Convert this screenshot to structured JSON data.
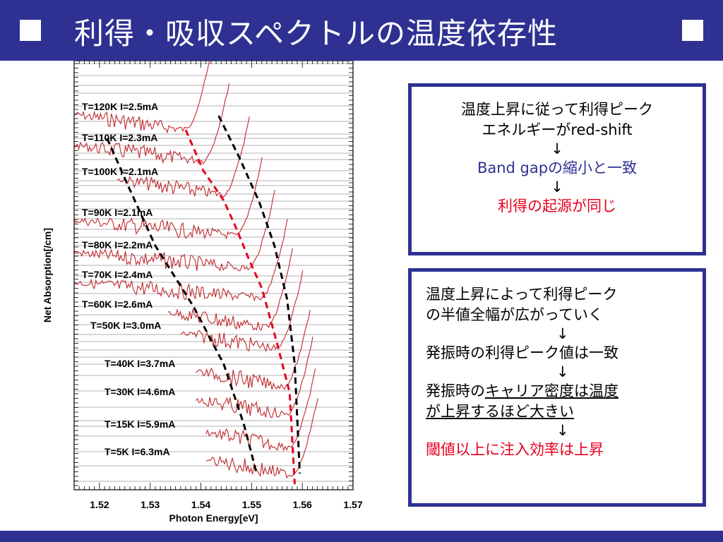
{
  "title": {
    "text": "利得・吸収スペクトルの温度依存性",
    "accent_color": "#2e3192"
  },
  "box1": {
    "line1": "温度上昇に従って利得ピーク",
    "line2": "エネルギーがred-shift",
    "arrow1": "↓",
    "line3": "Band gapの縮小と一致",
    "arrow2": "↓",
    "line4": "利得の起源が同じ"
  },
  "box2": {
    "line1": "温度上昇によって利得ピーク",
    "line2": "の半値全幅が広がっていく",
    "arrow1": "↓",
    "line3": "発振時の利得ピーク値は一致",
    "arrow2": "↓",
    "line4a": "発振時の",
    "line4b": "キャリア密度は温度",
    "line5": "が上昇するほど大きい",
    "arrow3": "↓",
    "line6": "閾値以上に注入効率は上昇"
  },
  "chart_data": {
    "type": "line",
    "xlabel": "Photon Energy[eV]",
    "ylabel": "Net Absorption[/cm]",
    "xlim": [
      1.515,
      1.57
    ],
    "xticks": [
      "1.52",
      "1.53",
      "1.54",
      "1.55",
      "1.56",
      "1.57"
    ],
    "grid": "horizontal",
    "series": [
      {
        "name": "T=120K I=2.5mA",
        "x_start": 1.515,
        "trough_x": 1.537
      },
      {
        "name": "T=110K I=2.3mA",
        "x_start": 1.515,
        "trough_x": 1.5405
      },
      {
        "name": "T=100K I=2.1mA",
        "x_start": 1.5235,
        "trough_x": 1.5445
      },
      {
        "name": "T=90K I=2.1mA",
        "x_start": 1.515,
        "trough_x": 1.547
      },
      {
        "name": "T=80K I=2.2mA",
        "x_start": 1.515,
        "trough_x": 1.5495
      },
      {
        "name": "T=70K I=2.4mA",
        "x_start": 1.515,
        "trough_x": 1.552
      },
      {
        "name": "T=60K I=2.6mA",
        "x_start": 1.5335,
        "trough_x": 1.553
      },
      {
        "name": "T=50K I=3.0mA",
        "x_start": 1.536,
        "trough_x": 1.555
      },
      {
        "name": "T=40K I=3.7mA",
        "x_start": 1.539,
        "trough_x": 1.5565
      },
      {
        "name": "T=30K I=4.6mA",
        "x_start": 1.539,
        "trough_x": 1.557
      },
      {
        "name": "T=15K I=5.9mA",
        "x_start": 1.541,
        "trough_x": 1.5575
      },
      {
        "name": "T=5K I=6.3mA",
        "x_start": 1.541,
        "trough_x": 1.558
      }
    ],
    "guide_lines": [
      {
        "style": "black dashed",
        "x": [
          1.5215,
          1.5255,
          1.531,
          1.5385,
          1.5445,
          1.5485,
          1.551
        ]
      },
      {
        "style": "red dashed",
        "x": [
          1.537,
          1.5405,
          1.5445,
          1.547,
          1.5495,
          1.552,
          1.555,
          1.5575,
          1.5585
        ]
      },
      {
        "style": "black dashed",
        "x": [
          1.5435,
          1.5475,
          1.5515,
          1.5545,
          1.557,
          1.5585,
          1.5595
        ]
      }
    ],
    "colors": {
      "curve": "#c0282d",
      "guide_red": "#e6001f",
      "guide_black": "#000000"
    }
  }
}
